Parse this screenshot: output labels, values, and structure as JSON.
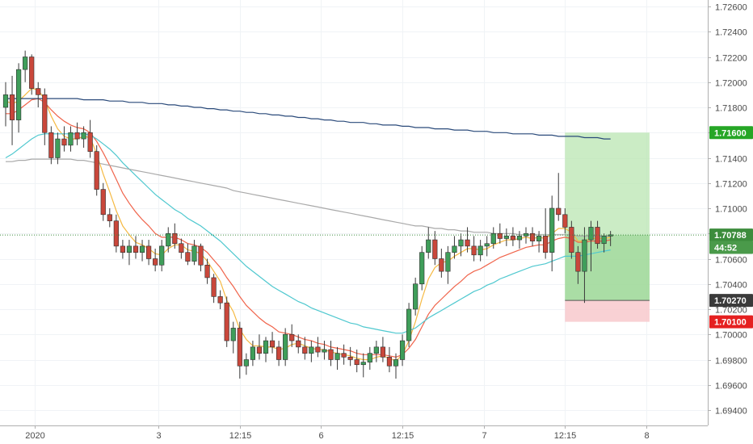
{
  "chart_data": {
    "type": "candlestick",
    "symbol_hint": "",
    "ylim": [
      1.693,
      1.7265
    ],
    "y_ticks": [
      "1.72600",
      "1.72400",
      "1.72200",
      "1.72000",
      "1.71800",
      "1.71600",
      "1.71400",
      "1.71200",
      "1.71000",
      "1.70800",
      "1.70600",
      "1.70400",
      "1.70200",
      "1.70000",
      "1.69800",
      "1.69600",
      "1.69400"
    ],
    "x_ticks": [
      {
        "label": "2020",
        "bar": 4.5
      },
      {
        "label": "3",
        "bar": 23.5
      },
      {
        "label": "12:15",
        "bar": 36
      },
      {
        "label": "6",
        "bar": 48.5
      },
      {
        "label": "12:15",
        "bar": 61
      },
      {
        "label": "7",
        "bar": 73.5
      },
      {
        "label": "12:15",
        "bar": 86
      },
      {
        "label": "8",
        "bar": 98.5
      }
    ],
    "ohlc": [
      [
        1.718,
        1.72,
        1.7165,
        1.719
      ],
      [
        1.719,
        1.7205,
        1.715,
        1.717
      ],
      [
        1.717,
        1.7215,
        1.716,
        1.721
      ],
      [
        1.721,
        1.7225,
        1.72,
        1.722
      ],
      [
        1.722,
        1.7222,
        1.719,
        1.7195
      ],
      [
        1.7195,
        1.72,
        1.718,
        1.719
      ],
      [
        1.719,
        1.7195,
        1.715,
        1.716
      ],
      [
        1.716,
        1.7165,
        1.7135,
        1.714
      ],
      [
        1.714,
        1.716,
        1.7135,
        1.7155
      ],
      [
        1.7155,
        1.7165,
        1.7145,
        1.715
      ],
      [
        1.715,
        1.7165,
        1.7145,
        1.716
      ],
      [
        1.716,
        1.7168,
        1.715,
        1.7155
      ],
      [
        1.7155,
        1.7165,
        1.7148,
        1.716
      ],
      [
        1.716,
        1.717,
        1.714,
        1.7145
      ],
      [
        1.7145,
        1.715,
        1.711,
        1.7115
      ],
      [
        1.7115,
        1.712,
        1.709,
        1.7095
      ],
      [
        1.7095,
        1.71,
        1.7085,
        1.709
      ],
      [
        1.709,
        1.7095,
        1.7065,
        1.707
      ],
      [
        1.707,
        1.7075,
        1.706,
        1.7065
      ],
      [
        1.7065,
        1.7075,
        1.7055,
        1.707
      ],
      [
        1.707,
        1.7078,
        1.706,
        1.7065
      ],
      [
        1.7065,
        1.7075,
        1.7058,
        1.707
      ],
      [
        1.707,
        1.7075,
        1.7055,
        1.706
      ],
      [
        1.706,
        1.7068,
        1.705,
        1.7055
      ],
      [
        1.7055,
        1.7075,
        1.705,
        1.707
      ],
      [
        1.707,
        1.7085,
        1.7065,
        1.708
      ],
      [
        1.708,
        1.7088,
        1.7068,
        1.7072
      ],
      [
        1.7072,
        1.7076,
        1.706,
        1.7065
      ],
      [
        1.7065,
        1.7072,
        1.7055,
        1.7058
      ],
      [
        1.7058,
        1.7075,
        1.7055,
        1.707
      ],
      [
        1.707,
        1.7072,
        1.705,
        1.7055
      ],
      [
        1.7055,
        1.706,
        1.704,
        1.7045
      ],
      [
        1.7045,
        1.7048,
        1.7025,
        1.703
      ],
      [
        1.703,
        1.7035,
        1.702,
        1.7025
      ],
      [
        1.7025,
        1.703,
        1.699,
        1.6995
      ],
      [
        1.6995,
        1.701,
        1.6985,
        1.7005
      ],
      [
        1.7005,
        1.701,
        1.6965,
        1.6975
      ],
      [
        1.6975,
        1.6985,
        1.6968,
        1.698
      ],
      [
        1.698,
        1.6995,
        1.6975,
        1.699
      ],
      [
        1.699,
        1.7,
        1.698,
        1.6985
      ],
      [
        1.6985,
        1.6998,
        1.6978,
        1.6995
      ],
      [
        1.6995,
        1.7002,
        1.6985,
        1.699
      ],
      [
        1.699,
        1.6995,
        1.6975,
        1.698
      ],
      [
        1.698,
        1.7005,
        1.6975,
        1.7
      ],
      [
        1.7,
        1.7008,
        1.699,
        1.6995
      ],
      [
        1.6995,
        1.7,
        1.6985,
        1.699
      ],
      [
        1.699,
        1.6998,
        1.698,
        1.6985
      ],
      [
        1.6985,
        1.6995,
        1.6978,
        1.699
      ],
      [
        1.699,
        1.6998,
        1.6982,
        1.6986
      ],
      [
        1.6986,
        1.6995,
        1.698,
        1.6988
      ],
      [
        1.6988,
        1.6995,
        1.6975,
        1.698
      ],
      [
        1.698,
        1.699,
        1.6972,
        1.6985
      ],
      [
        1.6985,
        1.6992,
        1.6976,
        1.6982
      ],
      [
        1.6982,
        1.699,
        1.6975,
        1.698
      ],
      [
        1.698,
        1.6988,
        1.697,
        1.6976
      ],
      [
        1.6976,
        1.6985,
        1.6966,
        1.6978
      ],
      [
        1.6978,
        1.699,
        1.6972,
        1.6985
      ],
      [
        1.6985,
        1.6995,
        1.6978,
        1.699
      ],
      [
        1.699,
        1.6998,
        1.6978,
        1.6982
      ],
      [
        1.6982,
        1.699,
        1.697,
        1.6975
      ],
      [
        1.6975,
        1.6985,
        1.6965,
        1.698
      ],
      [
        1.698,
        1.7,
        1.6975,
        1.6995
      ],
      [
        1.6995,
        1.7025,
        1.699,
        1.702
      ],
      [
        1.702,
        1.7045,
        1.7015,
        1.704
      ],
      [
        1.704,
        1.707,
        1.7035,
        1.7065
      ],
      [
        1.7065,
        1.7085,
        1.706,
        1.7075
      ],
      [
        1.7075,
        1.7082,
        1.7055,
        1.706
      ],
      [
        1.706,
        1.7068,
        1.7045,
        1.705
      ],
      [
        1.705,
        1.707,
        1.704,
        1.7065
      ],
      [
        1.7065,
        1.7078,
        1.706,
        1.707
      ],
      [
        1.707,
        1.708,
        1.7062,
        1.7075
      ],
      [
        1.7075,
        1.7085,
        1.7065,
        1.707
      ],
      [
        1.707,
        1.7078,
        1.7058,
        1.7063
      ],
      [
        1.7063,
        1.7075,
        1.7058,
        1.707
      ],
      [
        1.707,
        1.7078,
        1.7062,
        1.7072
      ],
      [
        1.7072,
        1.7085,
        1.7068,
        1.708
      ],
      [
        1.708,
        1.7088,
        1.7072,
        1.7076
      ],
      [
        1.7076,
        1.7084,
        1.707,
        1.7078
      ],
      [
        1.7078,
        1.7085,
        1.707,
        1.7075
      ],
      [
        1.7075,
        1.7082,
        1.7068,
        1.7078
      ],
      [
        1.7078,
        1.7085,
        1.7072,
        1.708
      ],
      [
        1.708,
        1.7085,
        1.707,
        1.7074
      ],
      [
        1.7074,
        1.7082,
        1.7065,
        1.7078
      ],
      [
        1.7078,
        1.71,
        1.706,
        1.7065
      ],
      [
        1.7065,
        1.711,
        1.705,
        1.71
      ],
      [
        1.71,
        1.7128,
        1.709,
        1.7095
      ],
      [
        1.7095,
        1.71,
        1.708,
        1.7085
      ],
      [
        1.7085,
        1.709,
        1.706,
        1.7065
      ],
      [
        1.7065,
        1.707,
        1.704,
        1.705
      ],
      [
        1.705,
        1.7085,
        1.7025,
        1.7075
      ],
      [
        1.7075,
        1.709,
        1.705,
        1.7085
      ],
      [
        1.7085,
        1.709,
        1.7068,
        1.7072
      ],
      [
        1.7072,
        1.708,
        1.7065,
        1.7078
      ],
      [
        1.7078,
        1.7082,
        1.707,
        1.7079
      ]
    ],
    "moving_averages": [
      {
        "color": "#f5b942",
        "values": [
          1.7185,
          1.7183,
          1.7185,
          1.719,
          1.7195,
          1.7194,
          1.7186,
          1.7173,
          1.7163,
          1.7157,
          1.7155,
          1.7155,
          1.7157,
          1.7156,
          1.7143,
          1.7127,
          1.7113,
          1.7098,
          1.7086,
          1.7079,
          1.7073,
          1.7071,
          1.7068,
          1.7064,
          1.7063,
          1.7068,
          1.7071,
          1.7071,
          1.7067,
          1.7066,
          1.7064,
          1.7058,
          1.705,
          1.7042,
          1.7027,
          1.7018,
          1.7004,
          1.6996,
          1.6991,
          1.6991,
          1.699,
          1.699,
          1.6988,
          1.6989,
          1.6992,
          1.6993,
          1.6991,
          1.6989,
          1.6988,
          1.6988,
          1.6986,
          1.6985,
          1.6984,
          1.6983,
          1.6981,
          1.698,
          1.698,
          1.6982,
          1.6983,
          1.6981,
          1.6979,
          1.6984,
          1.6995,
          1.701,
          1.7028,
          1.7044,
          1.7053,
          1.7057,
          1.7058,
          1.7062,
          1.7065,
          1.7068,
          1.7068,
          1.7067,
          1.7068,
          1.7071,
          1.7073,
          1.7075,
          1.7075,
          1.7076,
          1.7077,
          1.7076,
          1.7077,
          1.7076,
          1.708,
          1.7084,
          1.7084,
          1.7081,
          1.7074,
          1.7074,
          1.7076,
          1.7076,
          1.7076,
          1.7077
        ]
      },
      {
        "color": "#f0644b",
        "values": [
          1.7175,
          1.7175,
          1.7178,
          1.7182,
          1.7186,
          1.7187,
          1.7184,
          1.7178,
          1.7173,
          1.7169,
          1.7166,
          1.7164,
          1.7163,
          1.716,
          1.7153,
          1.7144,
          1.7134,
          1.7123,
          1.7112,
          1.7104,
          1.7097,
          1.7091,
          1.7086,
          1.708,
          1.7077,
          1.7077,
          1.7077,
          1.7075,
          1.7072,
          1.7071,
          1.7069,
          1.7065,
          1.7059,
          1.7053,
          1.7045,
          1.7038,
          1.703,
          1.7023,
          1.7018,
          1.7013,
          1.7009,
          1.7006,
          1.7002,
          1.7001,
          1.7,
          1.6998,
          1.6996,
          1.6995,
          1.6993,
          1.6992,
          1.699,
          1.6989,
          1.6988,
          1.6987,
          1.6985,
          1.6984,
          1.6984,
          1.6984,
          1.6984,
          1.6983,
          1.6982,
          1.6984,
          1.6989,
          1.6996,
          1.7006,
          1.7016,
          1.7023,
          1.7028,
          1.7033,
          1.7038,
          1.7042,
          1.7047,
          1.705,
          1.7052,
          1.7055,
          1.7058,
          1.7061,
          1.7063,
          1.7065,
          1.7067,
          1.7069,
          1.707,
          1.7071,
          1.7071,
          1.7074,
          1.7076,
          1.7077,
          1.7076,
          1.7073,
          1.7073,
          1.7074,
          1.7074,
          1.7074,
          1.7075
        ]
      },
      {
        "color": "#4fc8cf",
        "values": [
          1.714,
          1.7143,
          1.7147,
          1.7151,
          1.7155,
          1.7158,
          1.7159,
          1.7159,
          1.7159,
          1.7159,
          1.7159,
          1.7159,
          1.7159,
          1.7158,
          1.7155,
          1.7151,
          1.7147,
          1.7142,
          1.7136,
          1.7131,
          1.7126,
          1.7121,
          1.7116,
          1.7111,
          1.7107,
          1.7103,
          1.7099,
          1.7096,
          1.7092,
          1.7089,
          1.7086,
          1.7082,
          1.7078,
          1.7074,
          1.7069,
          1.7064,
          1.7059,
          1.7054,
          1.705,
          1.7046,
          1.7042,
          1.7038,
          1.7035,
          1.7032,
          1.7029,
          1.7026,
          1.7024,
          1.7021,
          1.7019,
          1.7017,
          1.7015,
          1.7013,
          1.7011,
          1.7009,
          1.7008,
          1.7006,
          1.7005,
          1.7004,
          1.7003,
          1.7002,
          1.7001,
          1.7001,
          1.7003,
          1.7005,
          1.7009,
          1.7013,
          1.7016,
          1.7019,
          1.7022,
          1.7025,
          1.7028,
          1.7031,
          1.7034,
          1.7036,
          1.7039,
          1.7041,
          1.7044,
          1.7046,
          1.7048,
          1.705,
          1.7052,
          1.7054,
          1.7055,
          1.7056,
          1.7058,
          1.706,
          1.7062,
          1.7062,
          1.7062,
          1.7063,
          1.7064,
          1.7065,
          1.7066,
          1.7067
        ]
      },
      {
        "color": "#a9a9a9",
        "values": [
          1.7137,
          1.7137,
          1.7138,
          1.7138,
          1.7139,
          1.7139,
          1.7139,
          1.7139,
          1.7139,
          1.7139,
          1.7139,
          1.7138,
          1.7138,
          1.7137,
          1.7136,
          1.7135,
          1.7134,
          1.7133,
          1.7132,
          1.7131,
          1.713,
          1.7129,
          1.7128,
          1.7127,
          1.7126,
          1.7125,
          1.7124,
          1.7123,
          1.7122,
          1.7121,
          1.712,
          1.7119,
          1.7118,
          1.7117,
          1.7116,
          1.7114,
          1.7113,
          1.7112,
          1.7111,
          1.711,
          1.7109,
          1.7108,
          1.7107,
          1.7106,
          1.7105,
          1.7104,
          1.7103,
          1.7102,
          1.7101,
          1.71,
          1.7099,
          1.7098,
          1.7097,
          1.7096,
          1.7095,
          1.7094,
          1.7093,
          1.7092,
          1.7091,
          1.709,
          1.7089,
          1.7088,
          1.7087,
          1.7086,
          1.7086,
          1.7085,
          1.7084,
          1.7084,
          1.7083,
          1.7083,
          1.7082,
          1.7082,
          1.7081,
          1.7081,
          1.7081,
          1.708,
          1.708,
          1.708,
          1.708,
          1.7079,
          1.7079,
          1.7079,
          1.7079,
          1.7079,
          1.7079,
          1.7079,
          1.7079,
          1.7079,
          1.7078,
          1.7078,
          1.7078,
          1.7078,
          1.7078,
          1.7078
        ]
      },
      {
        "color": "#2a4a7a",
        "values": [
          1.7187,
          1.7187,
          1.7187,
          1.7187,
          1.7187,
          1.7187,
          1.7187,
          1.7187,
          1.7187,
          1.7187,
          1.7187,
          1.7187,
          1.7186,
          1.7186,
          1.7186,
          1.7186,
          1.7185,
          1.7185,
          1.7185,
          1.7184,
          1.7184,
          1.7184,
          1.7183,
          1.7183,
          1.7183,
          1.7182,
          1.7182,
          1.7181,
          1.7181,
          1.718,
          1.718,
          1.7179,
          1.7179,
          1.7178,
          1.7178,
          1.7177,
          1.7177,
          1.7176,
          1.7176,
          1.7175,
          1.7175,
          1.7174,
          1.7174,
          1.7173,
          1.7173,
          1.7172,
          1.7172,
          1.7171,
          1.7171,
          1.717,
          1.717,
          1.7169,
          1.7169,
          1.7168,
          1.7168,
          1.7168,
          1.7167,
          1.7167,
          1.7166,
          1.7166,
          1.7166,
          1.7165,
          1.7165,
          1.7164,
          1.7164,
          1.7164,
          1.7163,
          1.7163,
          1.7163,
          1.7162,
          1.7162,
          1.7162,
          1.7161,
          1.7161,
          1.7161,
          1.716,
          1.716,
          1.716,
          1.7159,
          1.7159,
          1.7159,
          1.7159,
          1.7158,
          1.7158,
          1.7158,
          1.7157,
          1.7157,
          1.7157,
          1.7157,
          1.7156,
          1.7156,
          1.7156,
          1.7155,
          1.7155
        ]
      }
    ],
    "position": {
      "entry": 1.7027,
      "target": 1.716,
      "stop": 1.701,
      "start_bar": 86,
      "end_bar": 99
    },
    "badges": [
      {
        "label": "1.71600",
        "value": 1.716,
        "color": "#26a626"
      },
      {
        "label": "1.70788",
        "value": 1.70788,
        "color": "#3c8c3c"
      },
      {
        "label": "44:52",
        "value": 1.7069,
        "color": "#4a9a4a"
      },
      {
        "label": "1.70270",
        "value": 1.7027,
        "color": "#3a3a3a"
      },
      {
        "label": "1.70100",
        "value": 1.701,
        "color": "#e52020"
      }
    ],
    "current_price": 1.70788,
    "colors": {
      "up": "#3f9e5a",
      "down": "#c9473b",
      "target_fill": "#b9e6b2",
      "stop_fill": "#f8c9cc"
    }
  }
}
